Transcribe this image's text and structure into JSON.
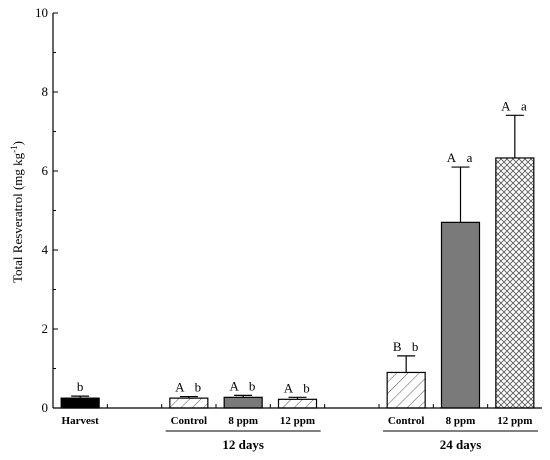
{
  "chart_data": {
    "type": "bar",
    "ylabel": "Total Resveratrol (mg kg",
    "ylabel_sup": "-1",
    "ylabel_end": ")",
    "ylim": [
      0,
      10
    ],
    "yticks": [
      "0",
      "2",
      "4",
      "6",
      "8",
      "10"
    ],
    "ytick_values": [
      0,
      2,
      4,
      6,
      8,
      10
    ],
    "categories": [
      "Harvest",
      "Control",
      "8 ppm",
      "12 ppm",
      "Control",
      "8 ppm",
      "12 ppm"
    ],
    "values": [
      0.25,
      0.25,
      0.27,
      0.22,
      0.9,
      4.7,
      6.33
    ],
    "errors": [
      0.05,
      0.04,
      0.05,
      0.05,
      0.42,
      1.4,
      1.08
    ],
    "fills": [
      "solid-black",
      "hatch-diagonal",
      "solid-gray",
      "hatch-diagonal",
      "hatch-diagonal",
      "solid-gray",
      "crosshatch"
    ],
    "sig_upper": [
      "",
      "A",
      "A",
      "A",
      "B",
      "A",
      "A"
    ],
    "sig_lower": [
      "b",
      "b",
      "b",
      "b",
      "b",
      "a",
      "a"
    ],
    "groups": [
      {
        "label": "12 days",
        "members": [
          1,
          2,
          3
        ]
      },
      {
        "label": "24 days",
        "members": [
          4,
          5,
          6
        ]
      }
    ],
    "colors": {
      "solid_black": "#000000",
      "solid_gray": "#7a7a7a",
      "hatch": "#555555"
    }
  }
}
